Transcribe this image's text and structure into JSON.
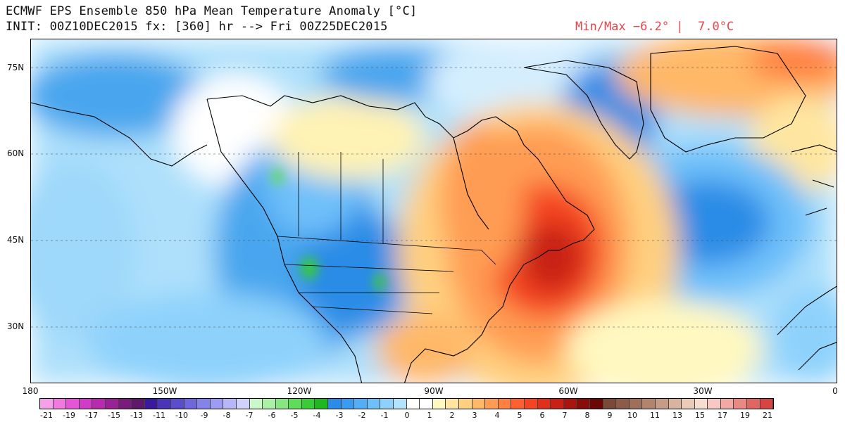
{
  "header": {
    "title": "ECMWF EPS Ensemble 850 hPa Mean Temperature Anomaly [°C]",
    "init": "INIT: 00Z10DEC2015 fx: [360] hr --> Fri 00Z25DEC2015",
    "minmax": "Min/Max −6.2° |  7.0°C"
  },
  "map": {
    "lat_labels": [
      "75N",
      "60N",
      "45N",
      "30N"
    ],
    "lon_labels": [
      "180",
      "150W",
      "120W",
      "90W",
      "60W",
      "30W",
      "0"
    ]
  },
  "colorbar": {
    "colors": [
      "#f5a0e8",
      "#f07ae0",
      "#e455d8",
      "#d23ac8",
      "#b82aae",
      "#982296",
      "#7a1c7c",
      "#5e1a6a",
      "#3a1a9c",
      "#4a34b8",
      "#5b4ecc",
      "#6e68dc",
      "#8484e8",
      "#9c9cf2",
      "#b6b6f8",
      "#d0d2fc",
      "#caf8c8",
      "#aaf0a6",
      "#86e682",
      "#5edc5a",
      "#38cc36",
      "#1eb820",
      "#2a8ce6",
      "#3a9cf0",
      "#52aef6",
      "#6ec0fa",
      "#8ed2fc",
      "#b2e4fe",
      "#ffffff",
      "#ffffff",
      "#fff8c0",
      "#ffe6a0",
      "#ffd080",
      "#ffb868",
      "#ff9c52",
      "#ff8040",
      "#ff6030",
      "#f54424",
      "#e0301c",
      "#c82014",
      "#a8140e",
      "#880c0a",
      "#6a0808",
      "#7a4a38",
      "#8c5c48",
      "#9e705c",
      "#b28470",
      "#c69c88",
      "#d8b4a0",
      "#eacab8",
      "#f6ddd0",
      "#f8c8c4",
      "#f2a8a4",
      "#ea8884",
      "#e06664",
      "#d64444"
    ],
    "labels": [
      "-21",
      "-19",
      "-17",
      "-15",
      "-13",
      "-11",
      "-10",
      "-9",
      "-8",
      "-7",
      "-6",
      "-5",
      "-4",
      "-3",
      "-2",
      "-1",
      "0",
      "1",
      "2",
      "3",
      "4",
      "5",
      "6",
      "7",
      "8",
      "9",
      "10",
      "11",
      "13",
      "15",
      "17",
      "19",
      "21"
    ]
  }
}
